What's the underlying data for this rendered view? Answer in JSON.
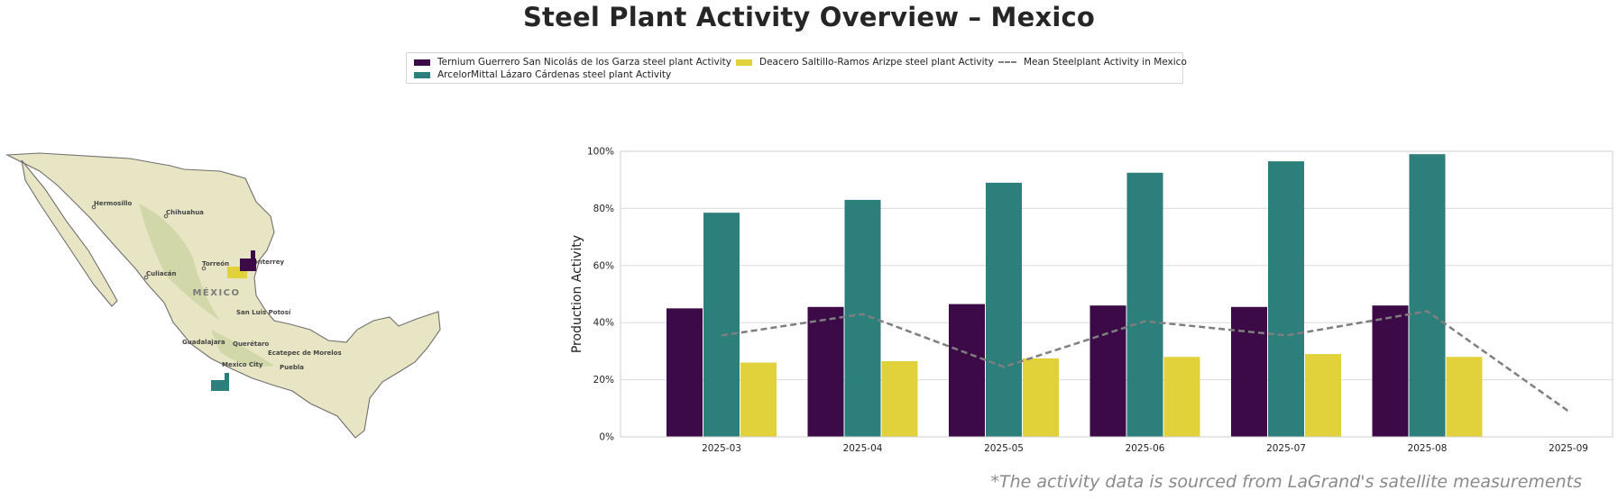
{
  "title": "Steel Plant Activity Overview – Mexico",
  "footnote": "*The activity data is sourced from LaGrand's satellite measurements",
  "legend": [
    {
      "label": "Ternium Guerrero San Nicolás de los Garza steel plant Activity",
      "color": "#3b0a47",
      "kind": "bar"
    },
    {
      "label": "Deacero Saltillo-Ramos Arizpe steel plant Activity",
      "color": "#e1d23c",
      "kind": "bar"
    },
    {
      "label": "Mean Steelplant Activity in Mexico",
      "color": "#7f7f7f",
      "kind": "line"
    },
    {
      "label": "ArcelorMittal Lázaro Cárdenas steel plant Activity",
      "color": "#2c7f7a",
      "kind": "bar"
    }
  ],
  "map": {
    "country_label": "MÉXICO",
    "cities": [
      "Hermosillo",
      "Chihuahua",
      "Culiacán",
      "Torreón",
      "Monterrey",
      "San Luis Potosí",
      "Guadalajara",
      "Querétaro",
      "Mexico City",
      "Ecatepec de Morelos",
      "Puebla"
    ],
    "colors": {
      "land": "#e8e5c4",
      "outline": "#6f6f6f",
      "relief": "#c9d29f"
    },
    "icons": [
      "factory-icon-ternium",
      "factory-icon-deacero",
      "factory-icon-arcelormittal"
    ]
  },
  "chart_data": {
    "type": "bar",
    "categories": [
      "2025-03",
      "2025-04",
      "2025-05",
      "2025-06",
      "2025-07",
      "2025-08",
      "2025-09"
    ],
    "series": [
      {
        "name": "Ternium Guerrero San Nicolás de los Garza steel plant Activity",
        "color": "#3b0a47",
        "values": [
          45,
          45.5,
          46.5,
          46,
          45.5,
          46,
          null
        ]
      },
      {
        "name": "ArcelorMittal Lázaro Cárdenas steel plant Activity",
        "color": "#2c7f7a",
        "values": [
          78.5,
          83,
          89,
          92.5,
          96.5,
          99,
          null
        ]
      },
      {
        "name": "Deacero Saltillo-Ramos Arizpe steel plant Activity",
        "color": "#e1d23c",
        "values": [
          26,
          26.5,
          27.5,
          28,
          29,
          28,
          null
        ]
      }
    ],
    "line": {
      "name": "Mean Steelplant Activity in Mexico",
      "color": "#7f7f7f",
      "values": [
        35.5,
        43,
        24.5,
        40.5,
        35.5,
        44,
        9
      ]
    },
    "ylabel": "Production Activity",
    "xlabel": "",
    "ylim": [
      0,
      100
    ],
    "yticks": [
      "0%",
      "20%",
      "40%",
      "60%",
      "80%",
      "100%"
    ],
    "grid": true
  }
}
